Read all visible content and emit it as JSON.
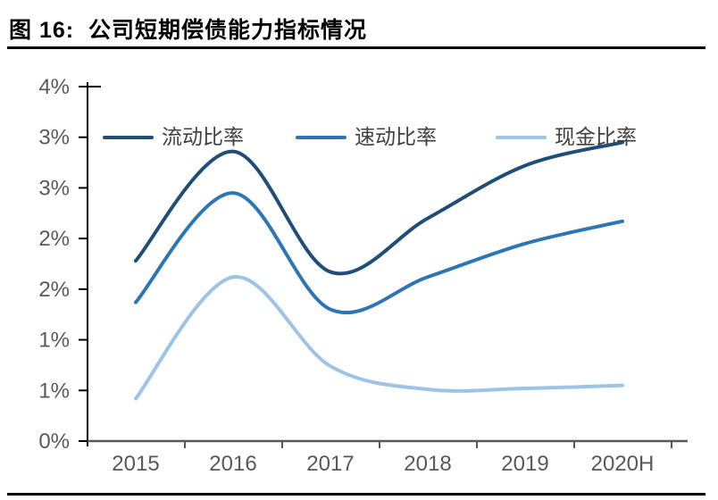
{
  "figure": {
    "title": "图 16:  公司短期偿债能力指标情况"
  },
  "chart_data": {
    "type": "line",
    "title": "公司短期偿债能力指标情况",
    "categories": [
      "2015",
      "2016",
      "2017",
      "2018",
      "2019",
      "2020H"
    ],
    "series": [
      {
        "name": "流动比率",
        "color": "#1F4E79",
        "values": [
          1.78,
          2.86,
          1.67,
          2.2,
          2.72,
          2.95
        ]
      },
      {
        "name": "速动比率",
        "color": "#2E75B6",
        "values": [
          1.37,
          2.45,
          1.3,
          1.62,
          1.95,
          2.17
        ]
      },
      {
        "name": "现金比率",
        "color": "#9DC3E6",
        "values": [
          0.42,
          1.62,
          0.74,
          0.51,
          0.52,
          0.55
        ]
      }
    ],
    "y_axis": {
      "min": 0,
      "max": 3.5,
      "step": 0.5,
      "tick_labels_bottom_to_top": [
        "0%",
        "1%",
        "1%",
        "2%",
        "2%",
        "3%",
        "3%",
        "4%"
      ]
    },
    "x_axis": {
      "labels": [
        "2015",
        "2016",
        "2017",
        "2018",
        "2019",
        "2020H"
      ]
    },
    "legend_position": "top",
    "grid": false,
    "smooth": true
  },
  "colors": {
    "axis_text": "#595959",
    "x_axis_line": "#595959",
    "y_axis_line": "#000000",
    "legend_text": "#404040",
    "rule": "#000000"
  }
}
